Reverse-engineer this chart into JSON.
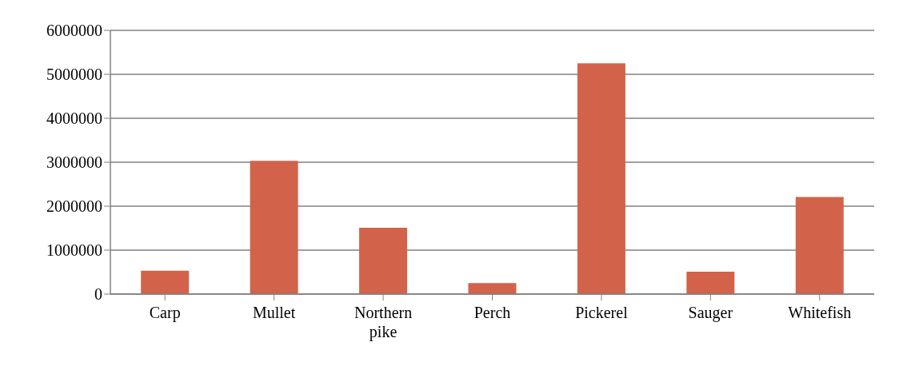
{
  "chart_data": {
    "type": "bar",
    "categories": [
      "Carp",
      "Mullet",
      "Northern pike",
      "Perch",
      "Pickerel",
      "Sauger",
      "Whitefish"
    ],
    "values": [
      530000,
      3030000,
      1510000,
      250000,
      5250000,
      510000,
      2210000
    ],
    "color": "#d2634a",
    "ylim": [
      0,
      6000000
    ],
    "yticks": [
      0,
      1000000,
      2000000,
      3000000,
      4000000,
      5000000,
      6000000
    ],
    "grid": "y"
  }
}
